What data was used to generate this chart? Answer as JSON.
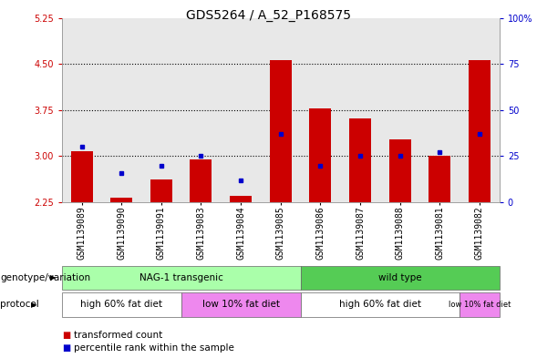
{
  "title": "GDS5264 / A_52_P168575",
  "samples": [
    "GSM1139089",
    "GSM1139090",
    "GSM1139091",
    "GSM1139083",
    "GSM1139084",
    "GSM1139085",
    "GSM1139086",
    "GSM1139087",
    "GSM1139088",
    "GSM1139081",
    "GSM1139082"
  ],
  "red_values": [
    3.08,
    2.33,
    2.62,
    2.95,
    2.35,
    4.57,
    3.78,
    3.62,
    3.28,
    3.0,
    4.56
  ],
  "blue_values": [
    30,
    16,
    20,
    25,
    12,
    37,
    20,
    25,
    25,
    27,
    37
  ],
  "ylim_left": [
    2.25,
    5.25
  ],
  "ylim_right": [
    0,
    100
  ],
  "yticks_left": [
    2.25,
    3.0,
    3.75,
    4.5,
    5.25
  ],
  "yticks_right": [
    0,
    25,
    50,
    75,
    100
  ],
  "grid_lines": [
    3.0,
    3.75,
    4.5
  ],
  "red_color": "#cc0000",
  "blue_color": "#0000cc",
  "col_bg_color": "#cccccc",
  "genotype_groups": [
    {
      "label": "NAG-1 transgenic",
      "start": 0,
      "end": 6,
      "color": "#aaffaa"
    },
    {
      "label": "wild type",
      "start": 6,
      "end": 11,
      "color": "#55cc55"
    }
  ],
  "protocol_groups": [
    {
      "label": "high 60% fat diet",
      "start": 0,
      "end": 3,
      "color": "#ffffff"
    },
    {
      "label": "low 10% fat diet",
      "start": 3,
      "end": 6,
      "color": "#ee88ee"
    },
    {
      "label": "high 60% fat diet",
      "start": 6,
      "end": 10,
      "color": "#ffffff"
    },
    {
      "label": "low 10% fat diet",
      "start": 10,
      "end": 11,
      "color": "#ee88ee"
    }
  ],
  "tick_color_left": "#cc0000",
  "tick_color_right": "#0000cc",
  "title_fontsize": 10,
  "axis_fontsize": 7,
  "label_fontsize": 7.5,
  "small_label_fontsize": 6
}
